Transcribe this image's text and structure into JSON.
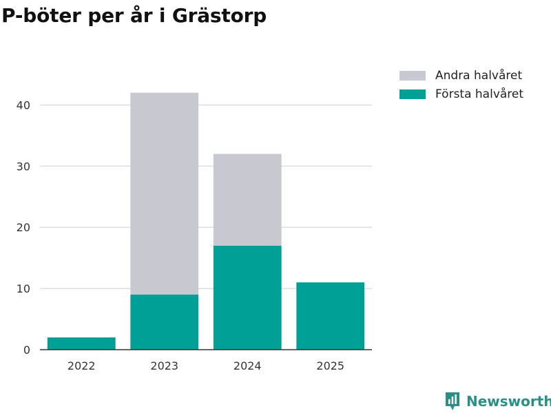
{
  "title": "P-böter per år i Grästorp",
  "brand": {
    "name": "Newsworthy",
    "icon": "newsworthy-logo-icon",
    "color": "#2a8f85"
  },
  "colors": {
    "forsta": "#00a096",
    "andra": "#c8c8d0",
    "grid": "#dddddd",
    "axis": "#333333"
  },
  "chart_data": {
    "type": "bar",
    "stacked": true,
    "categories": [
      "2022",
      "2023",
      "2024",
      "2025"
    ],
    "series": [
      {
        "name": "Första halvåret",
        "values": [
          2,
          9,
          17,
          11
        ],
        "color": "#00a096"
      },
      {
        "name": "Andra halvåret",
        "values": [
          0,
          33,
          15,
          0
        ],
        "color": "#c8c8d0"
      }
    ],
    "ylim": [
      0,
      45
    ],
    "yticks": [
      0,
      10,
      20,
      30,
      40
    ],
    "grid": true,
    "legend": "top-right",
    "legend_order": [
      "Andra halvåret",
      "Första halvåret"
    ]
  }
}
